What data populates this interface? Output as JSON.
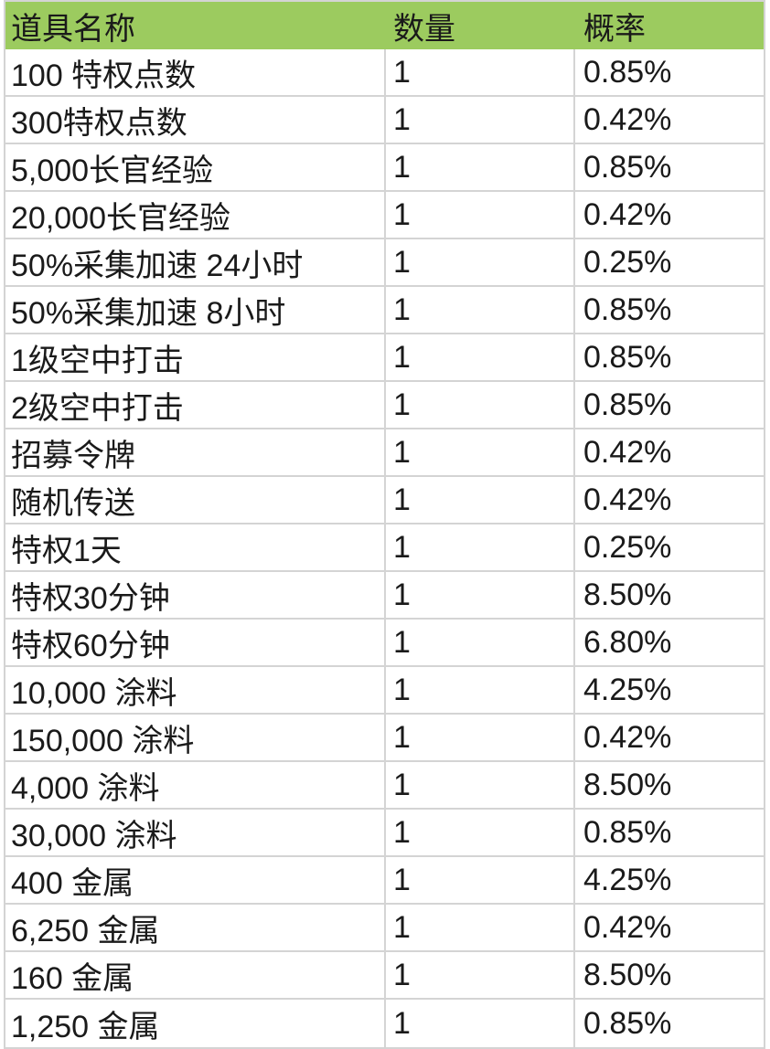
{
  "colors": {
    "header_bg": "#9CCB5F",
    "grid_line": "#D4D4D4",
    "text": "#1A1A1A",
    "background": "#FFFFFF"
  },
  "table": {
    "columns": [
      {
        "key": "name",
        "label": "道具名称"
      },
      {
        "key": "qty",
        "label": "数量"
      },
      {
        "key": "prob",
        "label": "概率"
      }
    ],
    "rows": [
      {
        "name": "100 特权点数",
        "qty": "1",
        "prob": "0.85%"
      },
      {
        "name": "300特权点数",
        "qty": "1",
        "prob": "0.42%"
      },
      {
        "name": "5,000长官经验",
        "qty": "1",
        "prob": "0.85%"
      },
      {
        "name": "20,000长官经验",
        "qty": "1",
        "prob": "0.42%"
      },
      {
        "name": "50%采集加速 24小时",
        "qty": "1",
        "prob": "0.25%"
      },
      {
        "name": "50%采集加速 8小时",
        "qty": "1",
        "prob": "0.85%"
      },
      {
        "name": "1级空中打击",
        "qty": "1",
        "prob": "0.85%"
      },
      {
        "name": "2级空中打击",
        "qty": "1",
        "prob": "0.85%"
      },
      {
        "name": "招募令牌",
        "qty": "1",
        "prob": "0.42%"
      },
      {
        "name": "随机传送",
        "qty": "1",
        "prob": "0.42%"
      },
      {
        "name": "特权1天",
        "qty": "1",
        "prob": "0.25%"
      },
      {
        "name": "特权30分钟",
        "qty": "1",
        "prob": "8.50%"
      },
      {
        "name": "特权60分钟",
        "qty": "1",
        "prob": "6.80%"
      },
      {
        "name": "10,000 涂料",
        "qty": "1",
        "prob": "4.25%"
      },
      {
        "name": "150,000 涂料",
        "qty": "1",
        "prob": "0.42%"
      },
      {
        "name": "4,000 涂料",
        "qty": "1",
        "prob": "8.50%"
      },
      {
        "name": "30,000 涂料",
        "qty": "1",
        "prob": "0.85%"
      },
      {
        "name": "400 金属",
        "qty": "1",
        "prob": "4.25%"
      },
      {
        "name": "6,250 金属",
        "qty": "1",
        "prob": "0.42%"
      },
      {
        "name": "160 金属",
        "qty": "1",
        "prob": "8.50%"
      },
      {
        "name": "1,250 金属",
        "qty": "1",
        "prob": "0.85%"
      }
    ]
  }
}
